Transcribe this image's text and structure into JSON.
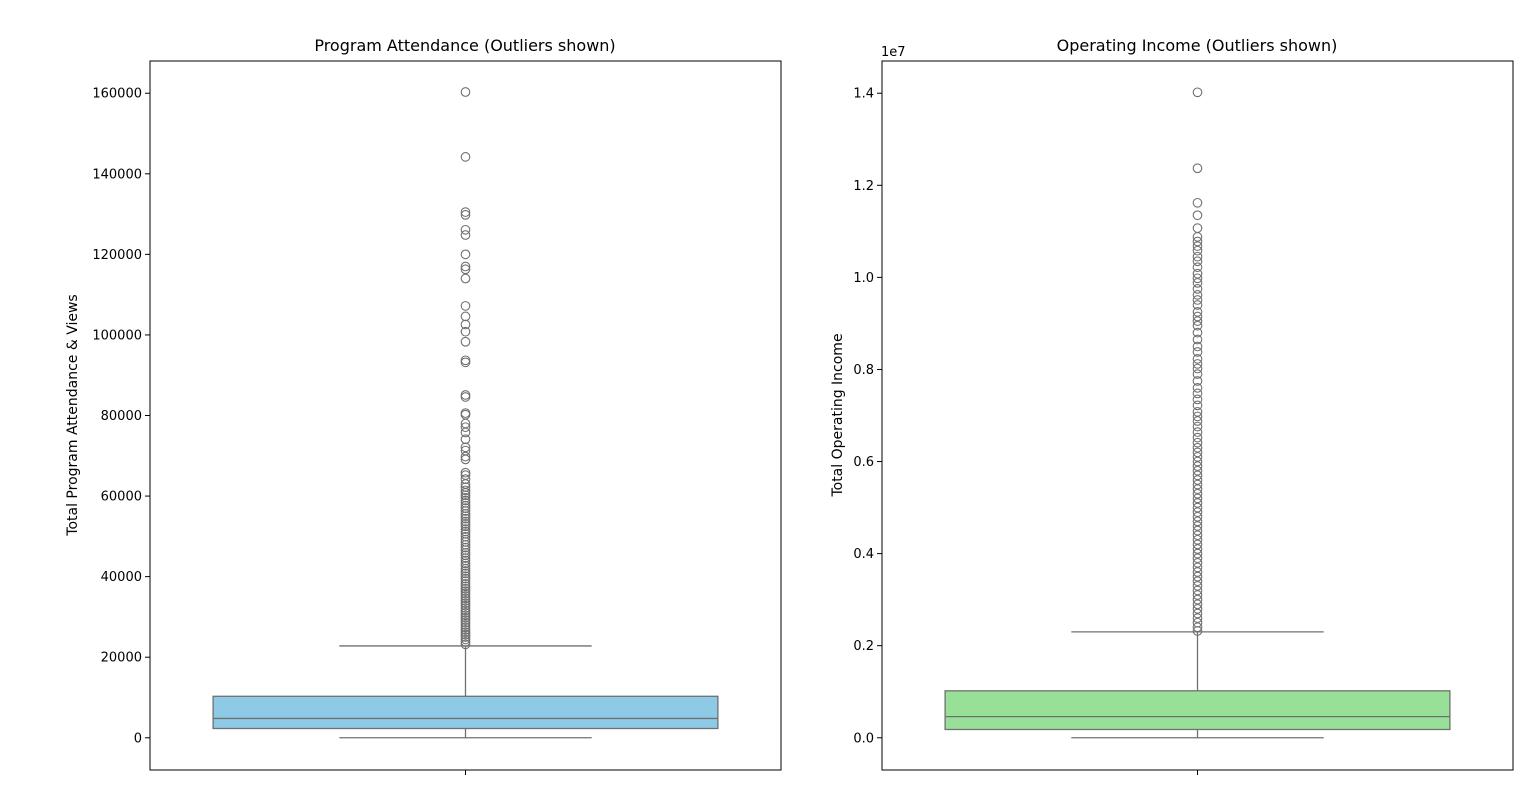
{
  "chart_data": [
    {
      "type": "box",
      "title": "Program Attendance (Outliers shown)",
      "xlabel": "",
      "ylabel": "Total Program Attendance & Views",
      "ylim": [
        -8000,
        168000
      ],
      "yticks": [
        0,
        20000,
        40000,
        60000,
        80000,
        100000,
        120000,
        140000,
        160000
      ],
      "ytick_labels": [
        "0",
        "20000",
        "40000",
        "60000",
        "80000",
        "100000",
        "120000",
        "140000",
        "160000"
      ],
      "offset_text": "",
      "box_color": "#8ecae6",
      "line_color": "#707070",
      "stats": {
        "min": 0,
        "q1": 2300,
        "median": 4800,
        "q3": 10300,
        "max": 22800
      },
      "outliers": [
        160300,
        144200,
        130500,
        129800,
        126100,
        124800,
        120000,
        117000,
        116300,
        114000,
        107200,
        104600,
        102600,
        100800,
        98300,
        93700,
        93200,
        85100,
        84600,
        80600,
        80200,
        78000,
        77100,
        75800,
        74100,
        72100,
        71300,
        69800,
        69100,
        65800,
        65200,
        64200,
        63000,
        62200,
        61400,
        60800,
        60200,
        59600,
        58900,
        58300,
        57600,
        57000,
        56300,
        55600,
        55000,
        54400,
        53700,
        53100,
        52500,
        51800,
        51200,
        50600,
        49900,
        49200,
        48600,
        47900,
        47200,
        46600,
        45900,
        45300,
        44600,
        44000,
        43300,
        42700,
        42000,
        41400,
        40800,
        40100,
        39500,
        38900,
        38200,
        37600,
        37000,
        36400,
        35800,
        35200,
        34600,
        34000,
        33400,
        32800,
        32200,
        31600,
        31000,
        30400,
        29800,
        29200,
        28600,
        28000,
        27400,
        26800,
        26200,
        25600,
        25000,
        24400,
        23800,
        23200
      ]
    },
    {
      "type": "box",
      "title": "Operating Income (Outliers shown)",
      "xlabel": "",
      "ylabel": "Total Operating Income",
      "ylim": [
        -0.07,
        1.47
      ],
      "yticks": [
        0.0,
        0.2,
        0.4,
        0.6,
        0.8,
        1.0,
        1.2,
        1.4
      ],
      "ytick_labels": [
        "0.0",
        "0.2",
        "0.4",
        "0.6",
        "0.8",
        "1.0",
        "1.2",
        "1.4"
      ],
      "offset_text": "1e7",
      "box_color": "#98e098",
      "line_color": "#707070",
      "stats": {
        "min": 0.0,
        "q1": 0.018,
        "median": 0.046,
        "q3": 0.102,
        "max": 0.23
      },
      "outliers": [
        1.402,
        1.237,
        1.162,
        1.135,
        1.107,
        1.088,
        1.078,
        1.068,
        1.058,
        1.045,
        1.035,
        1.022,
        1.008,
        0.998,
        0.988,
        0.975,
        0.962,
        0.951,
        0.94,
        0.925,
        0.915,
        0.905,
        0.895,
        0.88,
        0.865,
        0.85,
        0.838,
        0.823,
        0.812,
        0.802,
        0.79,
        0.775,
        0.76,
        0.748,
        0.735,
        0.722,
        0.708,
        0.698,
        0.688,
        0.676,
        0.664,
        0.652,
        0.641,
        0.63,
        0.62,
        0.61,
        0.6,
        0.59,
        0.58,
        0.57,
        0.56,
        0.55,
        0.54,
        0.53,
        0.52,
        0.51,
        0.5,
        0.49,
        0.48,
        0.47,
        0.46,
        0.45,
        0.44,
        0.43,
        0.42,
        0.41,
        0.4,
        0.39,
        0.38,
        0.37,
        0.36,
        0.35,
        0.34,
        0.33,
        0.32,
        0.31,
        0.3,
        0.29,
        0.28,
        0.27,
        0.26,
        0.25,
        0.24,
        0.232
      ]
    }
  ]
}
